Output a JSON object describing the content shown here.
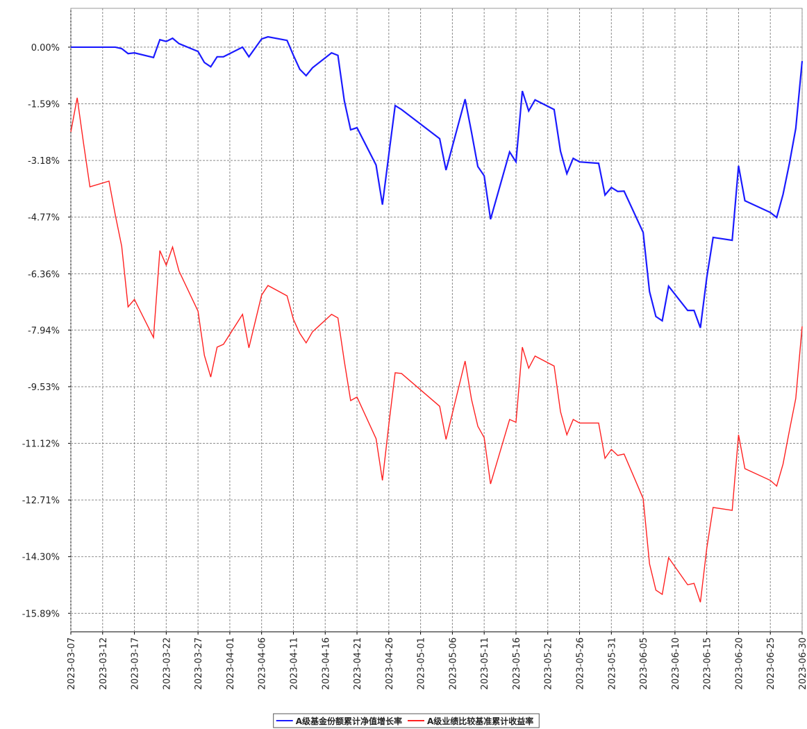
{
  "chart_data": {
    "type": "line",
    "x": [
      "2023-03-07",
      "2023-03-08",
      "2023-03-09",
      "2023-03-10",
      "2023-03-13",
      "2023-03-14",
      "2023-03-15",
      "2023-03-16",
      "2023-03-17",
      "2023-03-20",
      "2023-03-21",
      "2023-03-22",
      "2023-03-23",
      "2023-03-24",
      "2023-03-27",
      "2023-03-28",
      "2023-03-29",
      "2023-03-30",
      "2023-03-31",
      "2023-04-03",
      "2023-04-04",
      "2023-04-06",
      "2023-04-07",
      "2023-04-10",
      "2023-04-11",
      "2023-04-12",
      "2023-04-13",
      "2023-04-14",
      "2023-04-17",
      "2023-04-18",
      "2023-04-19",
      "2023-04-20",
      "2023-04-21",
      "2023-04-24",
      "2023-04-25",
      "2023-04-26",
      "2023-04-27",
      "2023-04-28",
      "2023-05-04",
      "2023-05-05",
      "2023-05-08",
      "2023-05-09",
      "2023-05-10",
      "2023-05-11",
      "2023-05-12",
      "2023-05-15",
      "2023-05-16",
      "2023-05-17",
      "2023-05-18",
      "2023-05-19",
      "2023-05-22",
      "2023-05-23",
      "2023-05-24",
      "2023-05-25",
      "2023-05-26",
      "2023-05-29",
      "2023-05-30",
      "2023-05-31",
      "2023-06-01",
      "2023-06-02",
      "2023-06-05",
      "2023-06-06",
      "2023-06-07",
      "2023-06-08",
      "2023-06-09",
      "2023-06-12",
      "2023-06-13",
      "2023-06-14",
      "2023-06-15",
      "2023-06-16",
      "2023-06-19",
      "2023-06-20",
      "2023-06-21",
      "2023-06-25",
      "2023-06-26",
      "2023-06-27",
      "2023-06-28",
      "2023-06-29",
      "2023-06-30"
    ],
    "series": [
      {
        "name": "A级基金份额累计净值增长率",
        "color": "#1a1aff",
        "values": [
          0.0,
          0.0,
          0.0,
          0.0,
          0.0,
          0.0,
          -0.04,
          -0.18,
          -0.16,
          -0.29,
          0.21,
          0.16,
          0.25,
          0.1,
          -0.12,
          -0.43,
          -0.55,
          -0.27,
          -0.27,
          0.0,
          -0.27,
          0.23,
          0.29,
          0.19,
          -0.23,
          -0.62,
          -0.8,
          -0.58,
          -0.16,
          -0.23,
          -1.5,
          -2.32,
          -2.26,
          -3.31,
          -4.42,
          -3.02,
          -1.64,
          -1.75,
          -2.57,
          -3.45,
          -1.46,
          -2.38,
          -3.35,
          -3.61,
          -4.83,
          -2.94,
          -3.22,
          -1.23,
          -1.79,
          -1.48,
          -1.75,
          -2.92,
          -3.55,
          -3.12,
          -3.22,
          -3.26,
          -4.15,
          -3.94,
          -4.05,
          -4.04,
          -5.2,
          -6.86,
          -7.56,
          -7.68,
          -6.71,
          -7.39,
          -7.39,
          -7.88,
          -6.47,
          -5.34,
          -5.42,
          -3.33,
          -4.31,
          -4.64,
          -4.78,
          -4.13,
          -3.26,
          -2.28,
          -0.39
        ]
      },
      {
        "name": "A级业绩比较基准累计收益率",
        "color": "#ff2020",
        "values": [
          -2.38,
          -1.42,
          -2.7,
          -3.92,
          -3.76,
          -4.72,
          -5.59,
          -7.29,
          -7.08,
          -8.15,
          -5.71,
          -6.12,
          -5.61,
          -6.28,
          -7.41,
          -8.65,
          -9.26,
          -8.42,
          -8.34,
          -7.5,
          -8.44,
          -6.96,
          -6.69,
          -6.98,
          -7.64,
          -8.03,
          -8.3,
          -7.99,
          -7.5,
          -7.6,
          -8.81,
          -9.92,
          -9.82,
          -10.99,
          -12.16,
          -10.6,
          -9.14,
          -9.16,
          -10.08,
          -11.01,
          -8.81,
          -9.88,
          -10.64,
          -10.96,
          -12.26,
          -10.45,
          -10.53,
          -8.42,
          -9.01,
          -8.67,
          -8.95,
          -10.23,
          -10.88,
          -10.45,
          -10.55,
          -10.55,
          -11.54,
          -11.29,
          -11.46,
          -11.42,
          -12.67,
          -14.5,
          -15.24,
          -15.36,
          -14.33,
          -15.09,
          -15.05,
          -15.58,
          -14.07,
          -12.92,
          -13.0,
          -10.88,
          -11.83,
          -12.16,
          -12.32,
          -11.7,
          -10.76,
          -9.86,
          -7.84
        ]
      }
    ],
    "xlim": [
      "2023-03-07",
      "2023-06-30"
    ],
    "xticks": [
      "2023-03-07",
      "2023-03-12",
      "2023-03-17",
      "2023-03-22",
      "2023-03-27",
      "2023-04-01",
      "2023-04-06",
      "2023-04-11",
      "2023-04-16",
      "2023-04-21",
      "2023-04-26",
      "2023-05-01",
      "2023-05-06",
      "2023-05-11",
      "2023-05-16",
      "2023-05-21",
      "2023-05-26",
      "2023-05-31",
      "2023-06-05",
      "2023-06-10",
      "2023-06-15",
      "2023-06-20",
      "2023-06-25",
      "2023-06-30"
    ],
    "ylim": [
      -16.41,
      1.09
    ],
    "yticks": [
      {
        "value": 0,
        "label": "0.00%"
      },
      {
        "value": -1.59,
        "label": "-1.59%"
      },
      {
        "value": -3.18,
        "label": "-3.18%"
      },
      {
        "value": -4.77,
        "label": "-4.77%"
      },
      {
        "value": -6.36,
        "label": "-6.36%"
      },
      {
        "value": -7.94,
        "label": "-7.94%"
      },
      {
        "value": -9.53,
        "label": "-9.53%"
      },
      {
        "value": -11.12,
        "label": "-11.12%"
      },
      {
        "value": -12.71,
        "label": "-12.71%"
      },
      {
        "value": -14.3,
        "label": "-14.30%"
      },
      {
        "value": -15.89,
        "label": "-15.89%"
      }
    ],
    "grid": true
  }
}
